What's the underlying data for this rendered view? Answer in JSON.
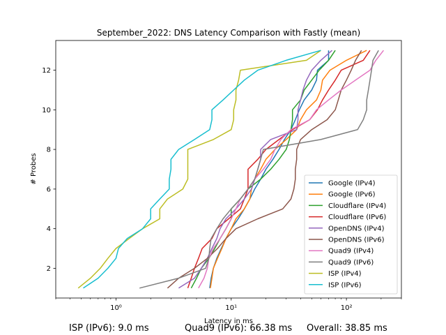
{
  "chart_data": {
    "type": "line",
    "title": "September_2022: DNS Latency Comparison with Fastly (mean)",
    "xlabel": "Latency in ms",
    "ylabel": "# Probes",
    "xscale": "log",
    "xlim": [
      0.3,
      300
    ],
    "ylim": [
      0.5,
      13.5
    ],
    "xticks": [
      {
        "value": 1,
        "label": "10⁰"
      },
      {
        "value": 10,
        "label": "10¹"
      },
      {
        "value": 100,
        "label": "10²"
      }
    ],
    "yticks": [
      2,
      4,
      6,
      8,
      10,
      12
    ],
    "grid": false,
    "legend_position": "bottom-right",
    "series": [
      {
        "name": "Google (IPv4)",
        "color": "#1f77b4",
        "x": [
          6.5,
          6.7,
          7,
          7.5,
          8.2,
          9,
          10,
          11.5,
          13,
          14.5,
          16,
          18,
          20,
          23,
          26,
          29,
          33,
          36,
          39,
          43,
          50,
          55,
          56,
          70,
          70
        ],
        "y": [
          1,
          1.5,
          2,
          2.5,
          3,
          3.5,
          4,
          4.5,
          5,
          5.5,
          6,
          6.5,
          7,
          7.5,
          8,
          8.5,
          9,
          9.5,
          10,
          10.5,
          11,
          11.5,
          12,
          12.5,
          13
        ]
      },
      {
        "name": "Google (IPv6)",
        "color": "#ff7f0e",
        "x": [
          6.6,
          6.8,
          7,
          7.6,
          8.3,
          9,
          10,
          11,
          13,
          14.5,
          15,
          16,
          18,
          20,
          24,
          30,
          37,
          40,
          45,
          55,
          60,
          62,
          72,
          100,
          150
        ],
        "y": [
          1,
          1.5,
          2,
          2.5,
          3,
          3.5,
          4,
          4.5,
          5,
          5.5,
          6,
          6.5,
          7,
          7.5,
          8,
          8.5,
          9,
          9.5,
          10,
          10.5,
          11,
          11.5,
          12,
          12.5,
          13
        ]
      },
      {
        "name": "Cloudflare (IPv4)",
        "color": "#2ca02c",
        "x": [
          4.5,
          5,
          5.5,
          6.4,
          7.2,
          8,
          9,
          10,
          10,
          12,
          14,
          18,
          22,
          26,
          30,
          32,
          33,
          34,
          34,
          40,
          43,
          50,
          58,
          70,
          80
        ],
        "y": [
          1,
          1.5,
          2,
          2.5,
          3,
          3.5,
          4,
          4.5,
          5,
          5.5,
          6,
          6.5,
          7,
          7.5,
          8,
          8.5,
          9,
          9.5,
          10,
          10.5,
          11,
          11.5,
          12,
          12.5,
          13
        ]
      },
      {
        "name": "Cloudflare (IPv6)",
        "color": "#d62728",
        "x": [
          4.2,
          4.5,
          4.8,
          5.2,
          5.6,
          6.8,
          7.5,
          9.5,
          12,
          13,
          14,
          14,
          14,
          17,
          20,
          26,
          34,
          48,
          56,
          62,
          70,
          80,
          90,
          140,
          160
        ],
        "y": [
          1,
          1.5,
          2,
          2.5,
          3,
          3.5,
          4,
          4.5,
          5,
          5.5,
          6,
          6.5,
          7,
          7.5,
          8,
          8.5,
          9,
          9.5,
          10,
          10.5,
          11,
          11.5,
          12,
          12.5,
          13
        ]
      },
      {
        "name": "OpenDNS (IPv4)",
        "color": "#9467bd",
        "x": [
          3.5,
          4.8,
          5.5,
          6.2,
          6.8,
          7.5,
          8,
          9,
          11,
          13,
          15,
          16,
          17,
          18,
          18,
          22,
          37,
          38,
          38,
          40,
          42,
          45,
          50,
          60,
          75
        ],
        "y": [
          1,
          1.5,
          2,
          2.5,
          3,
          3.5,
          4,
          4.5,
          5,
          5.5,
          6,
          6.5,
          7,
          7.5,
          8,
          8.5,
          9,
          9.5,
          10,
          10.5,
          11,
          11.5,
          12,
          12.5,
          13
        ]
      },
      {
        "name": "OpenDNS (IPv6)",
        "color": "#8c564b",
        "x": [
          2.8,
          3.5,
          4.8,
          6.2,
          7.6,
          9,
          11,
          17,
          28,
          33,
          35,
          36,
          36,
          37,
          37,
          40,
          50,
          68,
          80,
          85,
          90,
          100,
          110,
          120,
          135
        ],
        "y": [
          1,
          1.5,
          2,
          2.5,
          3,
          3.5,
          4,
          4.5,
          5,
          5.5,
          6,
          6.5,
          7,
          7.5,
          8,
          8.5,
          9,
          9.5,
          10,
          10.5,
          11,
          11.5,
          12,
          12.5,
          13
        ]
      },
      {
        "name": "Quad9 (IPv4)",
        "color": "#e377c2",
        "x": [
          5.2,
          5.8,
          6.2,
          6.4,
          7,
          8,
          9,
          10,
          11,
          12,
          14,
          16,
          19,
          22,
          24,
          27,
          33,
          48,
          55,
          70,
          90,
          120,
          160,
          180,
          210
        ],
        "y": [
          1,
          1.5,
          2,
          2.5,
          3,
          3.5,
          4,
          4.5,
          5,
          5.5,
          6,
          6.5,
          7,
          7.5,
          8,
          8.5,
          9,
          9.5,
          10,
          10.5,
          11,
          11.5,
          12,
          12.5,
          13
        ]
      },
      {
        "name": "Quad9 (IPv6)",
        "color": "#7f7f7f",
        "x": [
          1.6,
          3.5,
          6,
          6.4,
          6.5,
          6.7,
          7.5,
          8.5,
          10,
          12,
          14,
          16,
          17,
          18,
          19,
          60,
          125,
          140,
          150,
          150,
          155,
          160,
          165,
          170,
          190
        ],
        "y": [
          1,
          1.5,
          2,
          2.5,
          3,
          3.5,
          4,
          4.5,
          5,
          5.5,
          6,
          6.5,
          7,
          7.5,
          8,
          8.5,
          9,
          9.5,
          10,
          10.5,
          11,
          11.5,
          12,
          12.5,
          13
        ]
      },
      {
        "name": "ISP (IPv4)",
        "color": "#bcbd22",
        "x": [
          0.47,
          0.6,
          0.73,
          0.85,
          1,
          1.3,
          1.7,
          2.4,
          2.4,
          2.8,
          3.8,
          4.2,
          4.2,
          4.2,
          4.2,
          7,
          10,
          10.5,
          10.5,
          11,
          11,
          11.6,
          12,
          45,
          60
        ],
        "y": [
          1,
          1.5,
          2,
          2.5,
          3,
          3.5,
          4,
          4.5,
          5,
          5.5,
          6,
          6.5,
          7,
          7.5,
          8,
          8.5,
          9,
          9.5,
          10,
          10.5,
          11,
          11.5,
          12,
          12.5,
          13
        ]
      },
      {
        "name": "ISP (IPv6)",
        "color": "#17becf",
        "x": [
          0.52,
          0.7,
          0.85,
          1,
          1.05,
          1.25,
          1.7,
          2,
          2,
          2.4,
          2.9,
          2.9,
          3,
          3,
          3.5,
          4.8,
          6.5,
          6.8,
          6.8,
          8.5,
          10.5,
          13,
          17,
          30,
          60
        ],
        "y": [
          1,
          1.5,
          2,
          2.5,
          3,
          3.5,
          4,
          4.5,
          5,
          5.5,
          6,
          6.5,
          7,
          7.5,
          8,
          8.5,
          9,
          9.5,
          10,
          10.5,
          11,
          11.5,
          12,
          12.5,
          13
        ]
      }
    ]
  },
  "footer": {
    "isp": "ISP (IPv6): 9.0 ms",
    "quad9": "Quad9 (IPv6): 66.38 ms",
    "overall": "Overall: 38.85 ms"
  }
}
